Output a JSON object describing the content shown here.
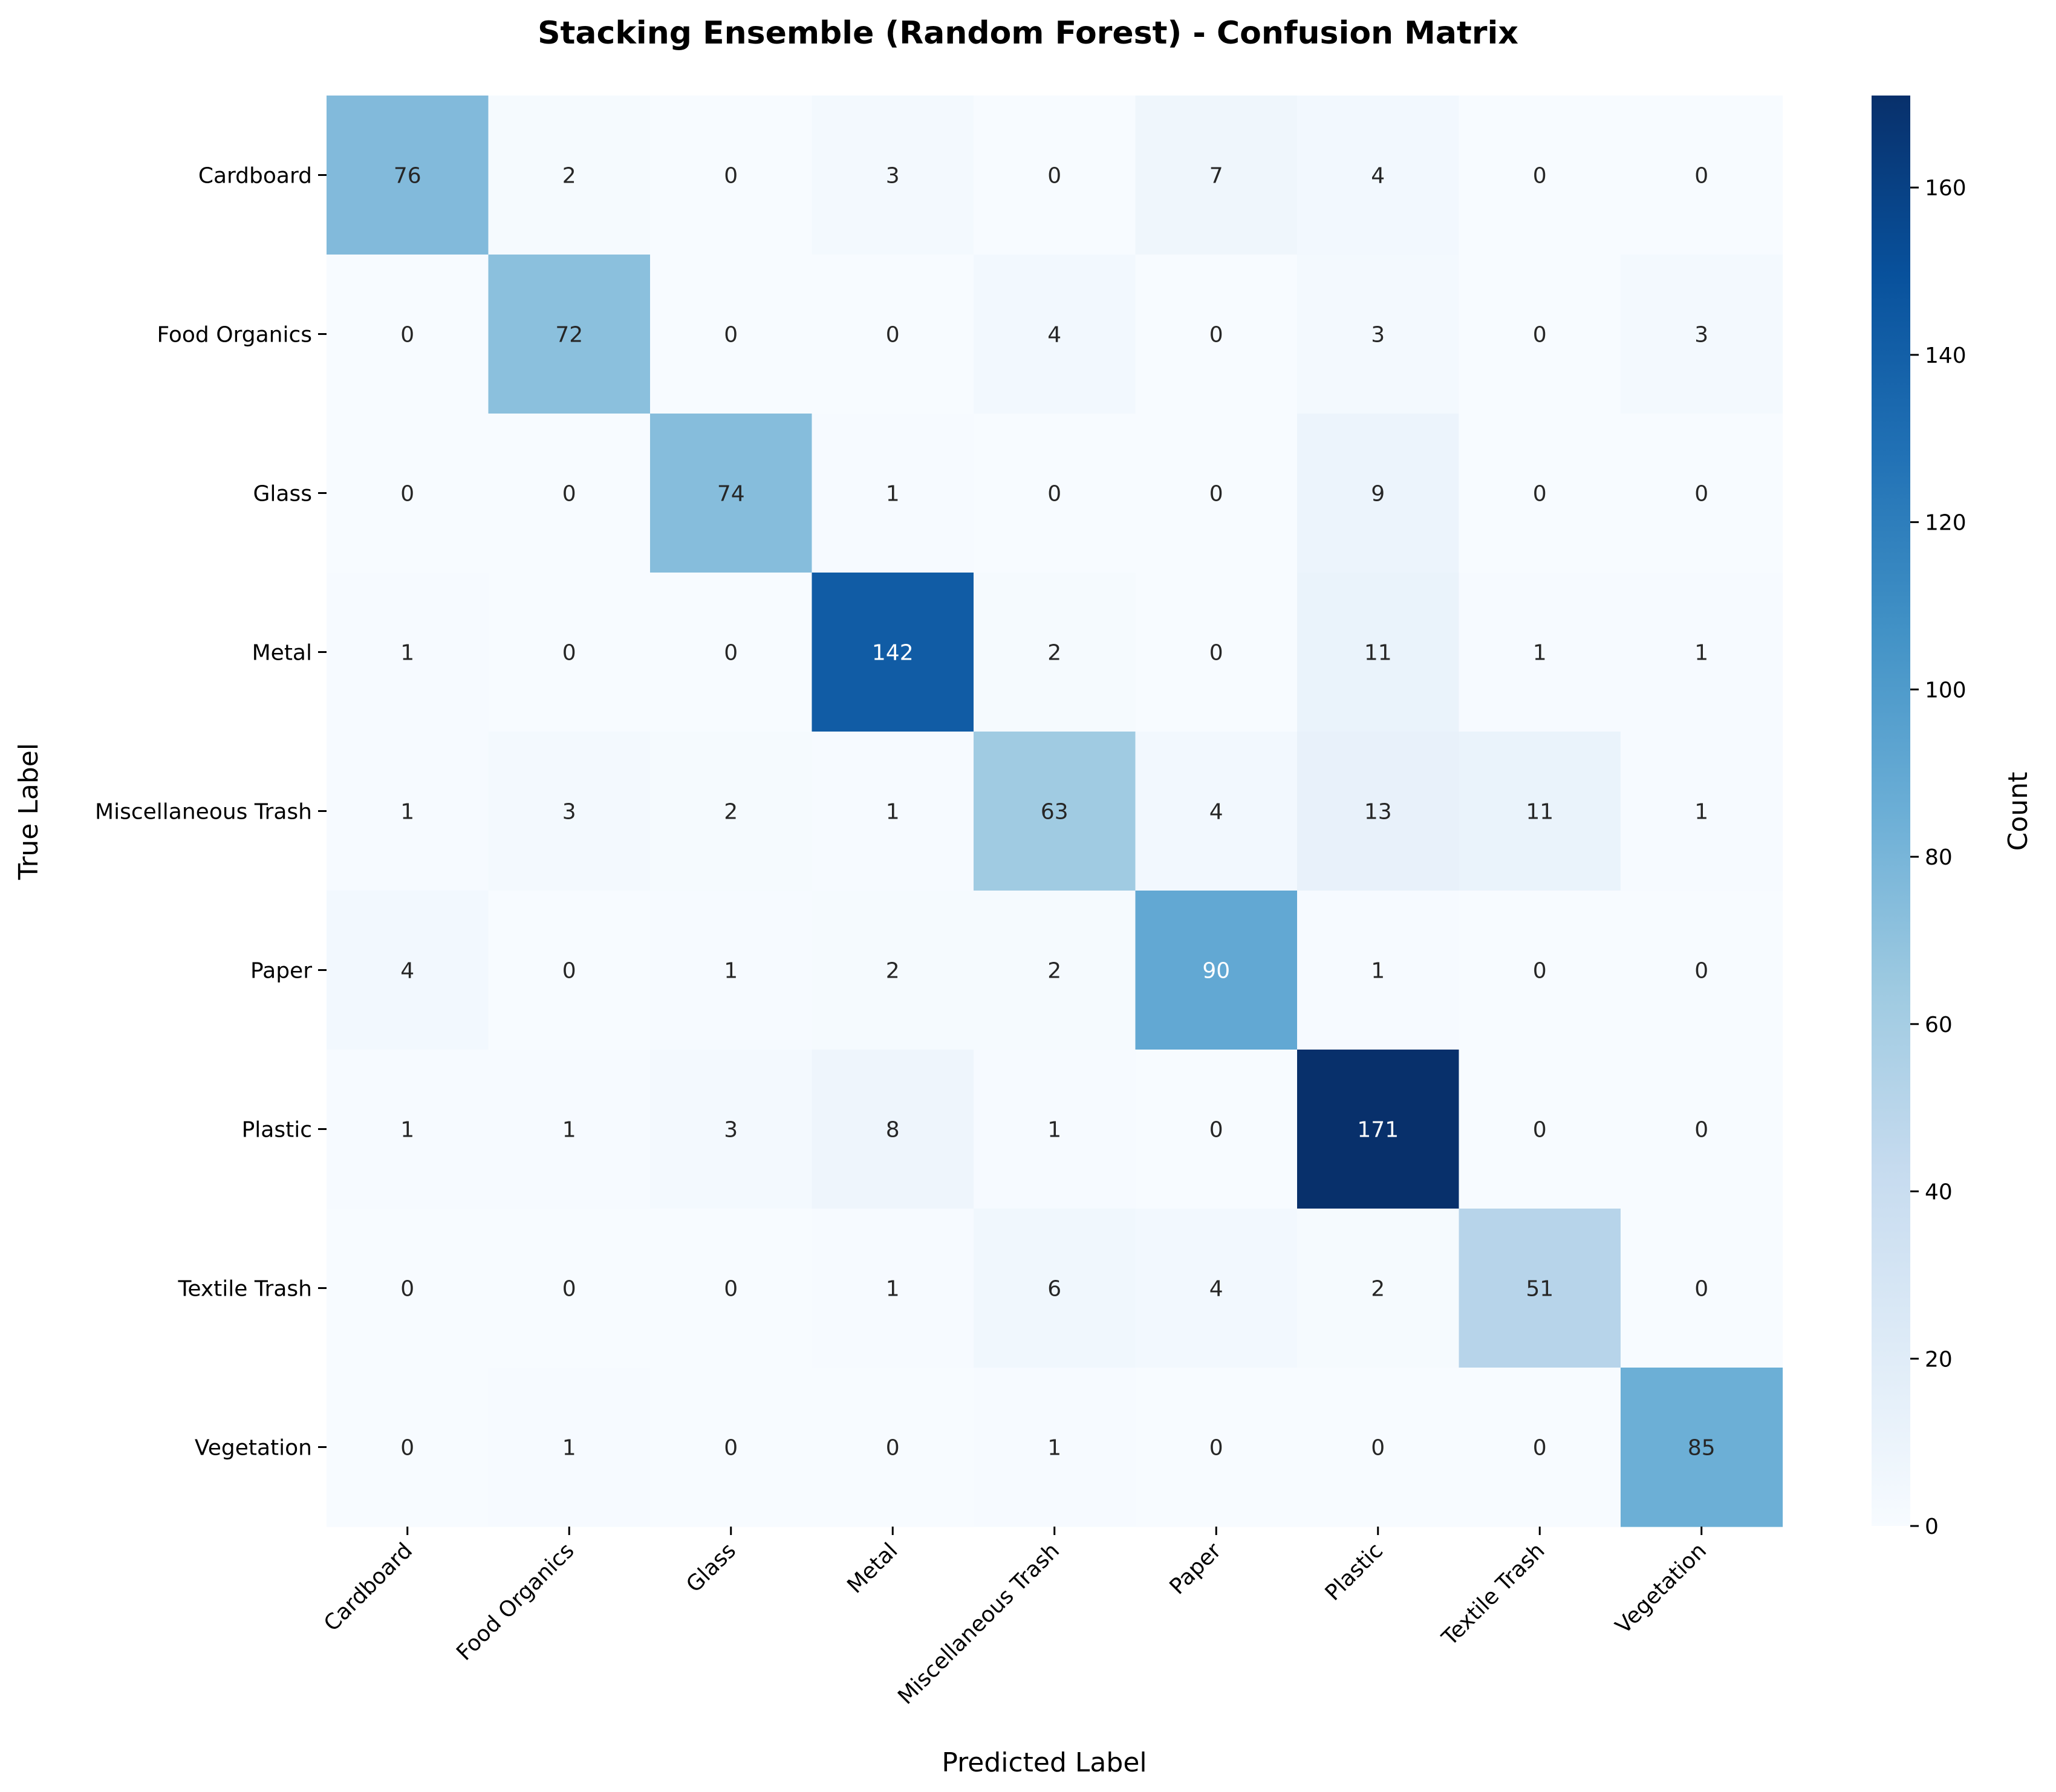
{
  "chart_data": {
    "type": "heatmap",
    "title": "Stacking Ensemble (Random Forest) - Confusion Matrix",
    "xlabel": "Predicted Label",
    "ylabel": "True Label",
    "row_labels": [
      "Cardboard",
      "Food Organics",
      "Glass",
      "Metal",
      "Miscellaneous Trash",
      "Paper",
      "Plastic",
      "Textile Trash",
      "Vegetation"
    ],
    "col_labels": [
      "Cardboard",
      "Food Organics",
      "Glass",
      "Metal",
      "Miscellaneous Trash",
      "Paper",
      "Plastic",
      "Textile Trash",
      "Vegetation"
    ],
    "values": [
      [
        76,
        2,
        0,
        3,
        0,
        7,
        4,
        0,
        0
      ],
      [
        0,
        72,
        0,
        0,
        4,
        0,
        3,
        0,
        3
      ],
      [
        0,
        0,
        74,
        1,
        0,
        0,
        9,
        0,
        0
      ],
      [
        1,
        0,
        0,
        142,
        2,
        0,
        11,
        1,
        1
      ],
      [
        1,
        3,
        2,
        1,
        63,
        4,
        13,
        11,
        1
      ],
      [
        4,
        0,
        1,
        2,
        2,
        90,
        1,
        0,
        0
      ],
      [
        1,
        1,
        3,
        8,
        1,
        0,
        171,
        0,
        0
      ],
      [
        0,
        0,
        0,
        1,
        6,
        4,
        2,
        51,
        0
      ],
      [
        0,
        1,
        0,
        0,
        1,
        0,
        0,
        0,
        85
      ]
    ],
    "colorbar": {
      "label": "Count",
      "min": 0,
      "max": 171,
      "ticks": [
        0,
        20,
        40,
        60,
        80,
        100,
        120,
        140,
        160
      ]
    },
    "colormap": "Blues",
    "colors": {
      "low": "#f7fbff",
      "high": "#08306b"
    }
  }
}
